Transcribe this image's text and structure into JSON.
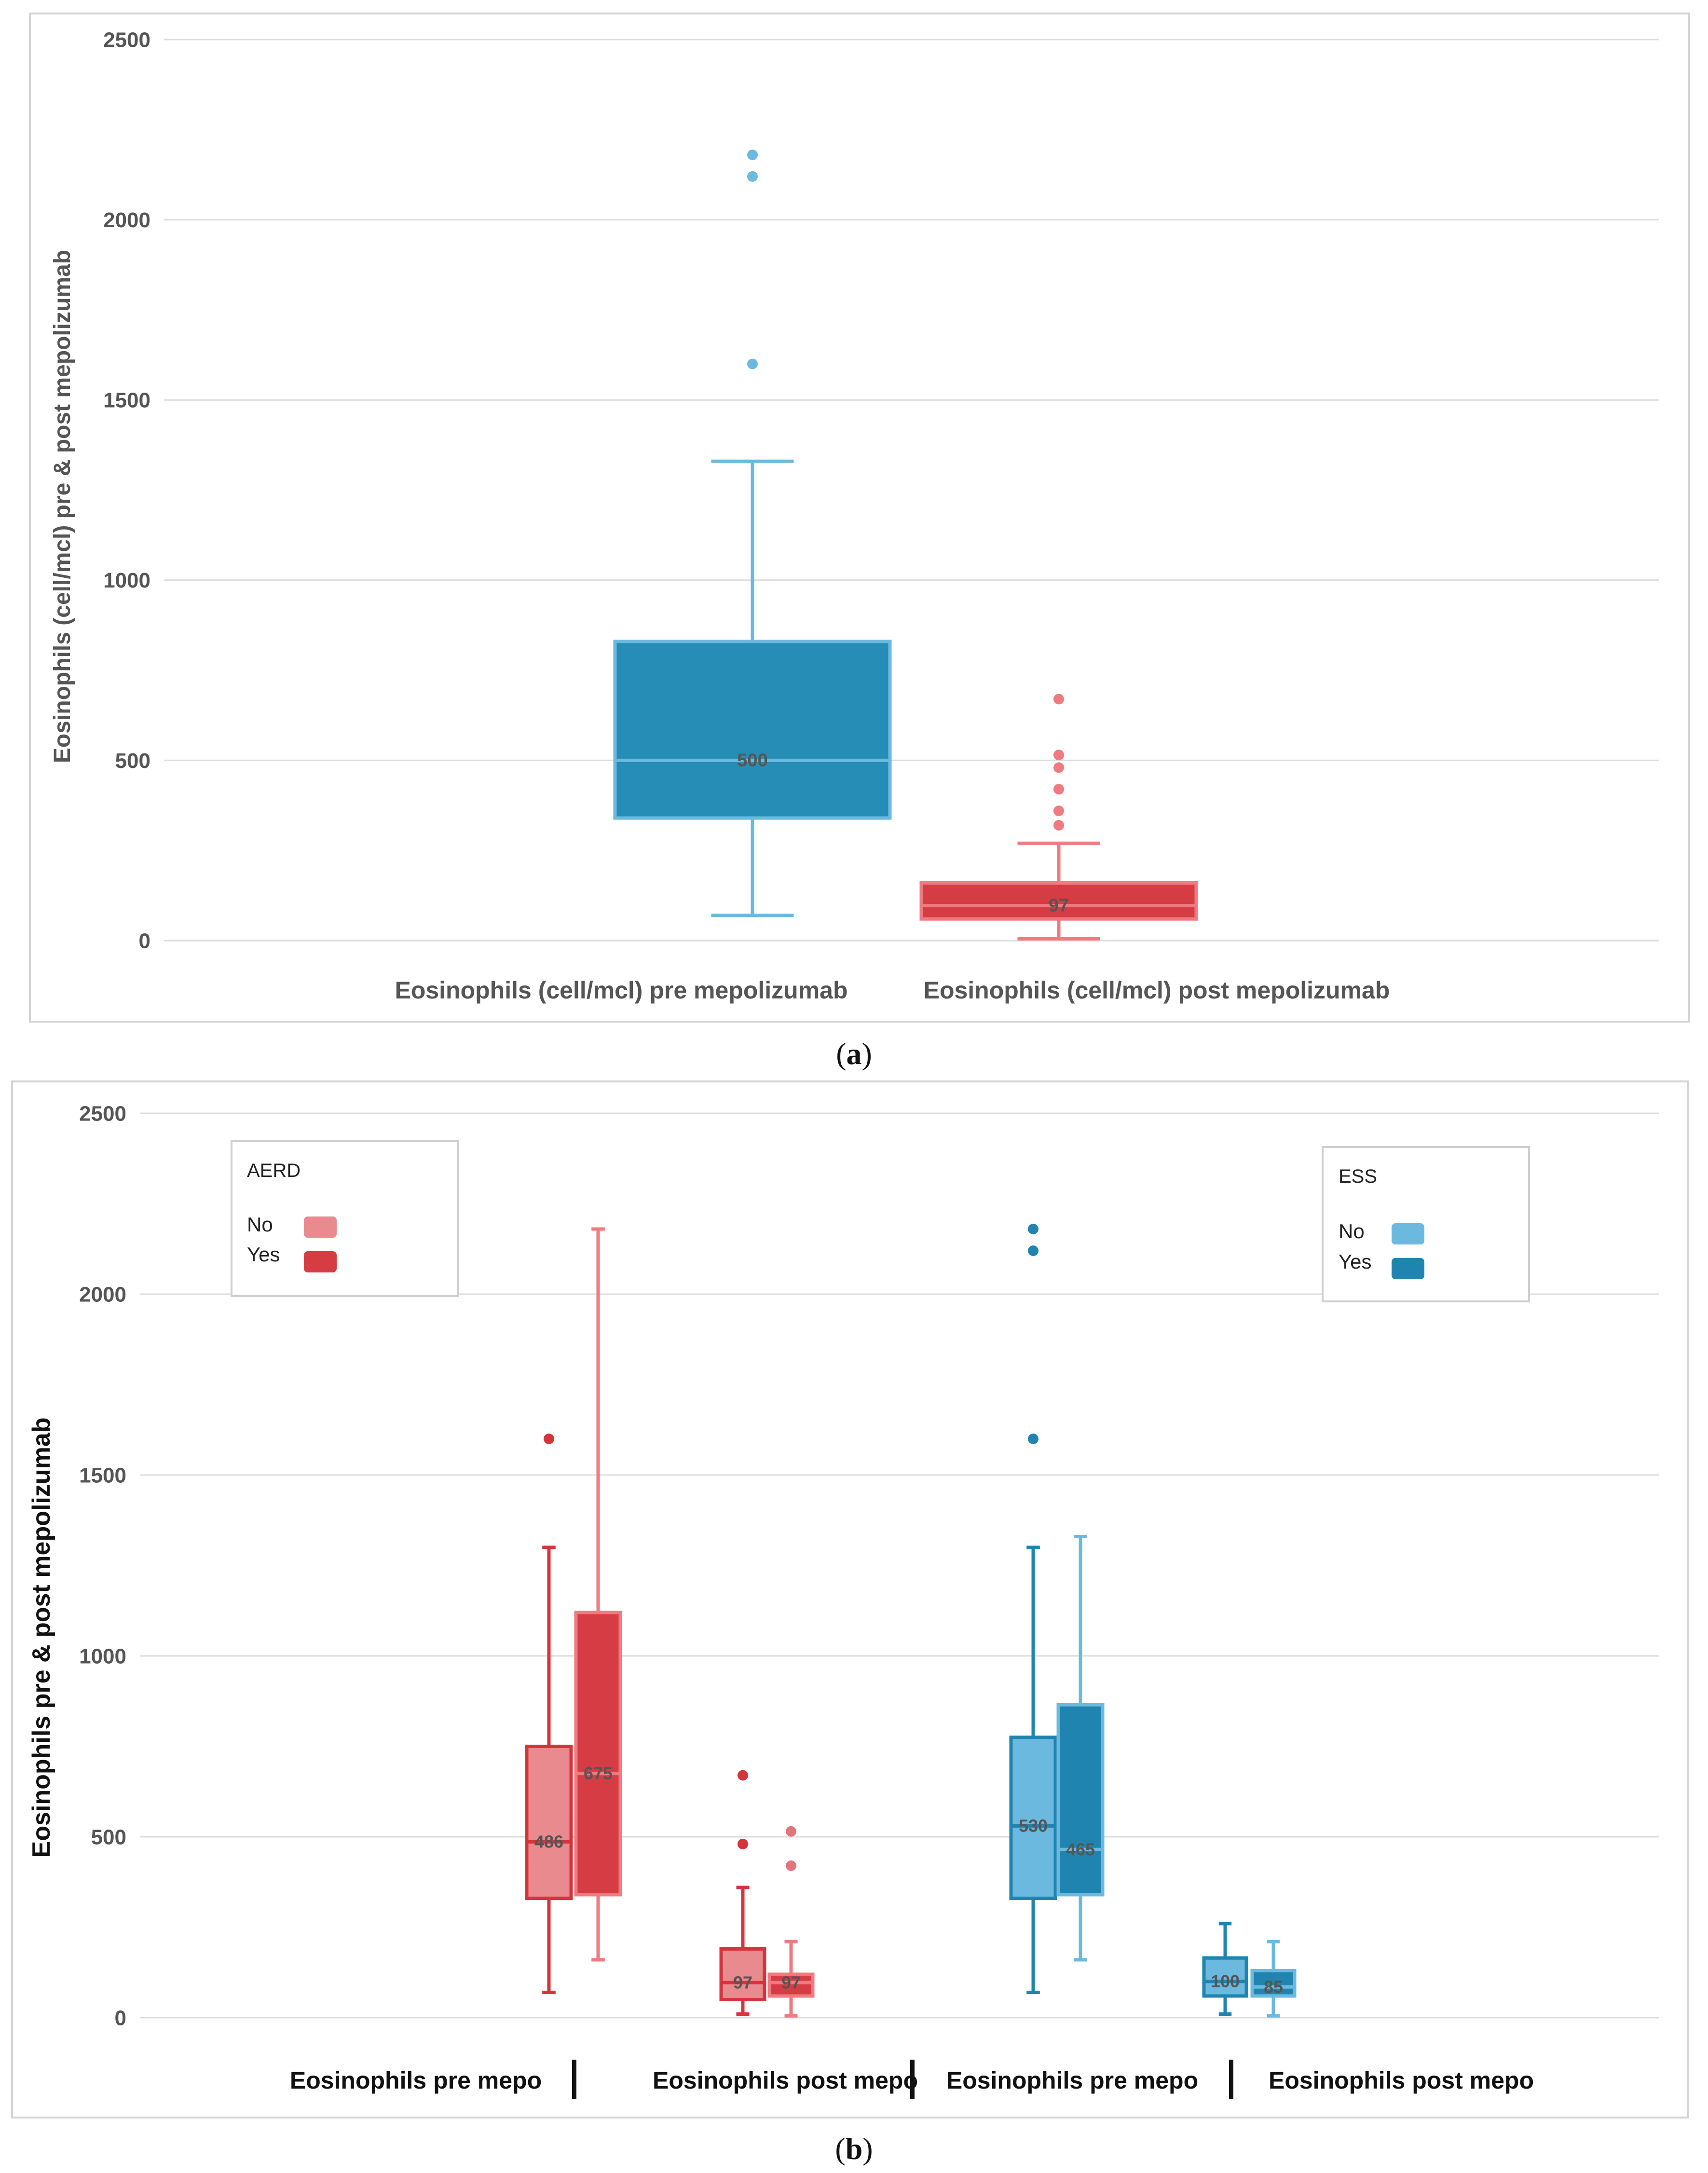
{
  "captions": {
    "a": {
      "open": "(",
      "letter": "a",
      "close": ")"
    },
    "b": {
      "open": "(",
      "letter": "b",
      "close": ")"
    }
  },
  "colors": {
    "grid": "#dcdcdc",
    "frame": "#d4d4d4",
    "text": "#555555",
    "blue_fill": "#258db6",
    "blue_edge": "#6bb9de",
    "red_fill": "#d63c44",
    "red_edge": "#ef7a7f",
    "red_light_fill": "#e88a8e",
    "red_light_edge": "#d6343c",
    "blue_light_fill": "#6cb9e0",
    "blue_light_edge": "#1f85b0"
  },
  "chart_data": [
    {
      "id": "a",
      "type": "box",
      "title": "",
      "xlabel": "",
      "ylabel": "Eosinophils (cell/mcl) pre & post mepolizumab",
      "ylim": [
        0,
        2500
      ],
      "yticks": [
        0,
        500,
        1000,
        1500,
        2000,
        2500
      ],
      "grid": true,
      "categories": [
        "Eosinophils (cell/mcl) pre mepolizumab",
        "Eosinophils (cell/mcl) post mepolizumab"
      ],
      "boxes": [
        {
          "category": "Eosinophils (cell/mcl) pre mepolizumab",
          "whisker_low": 70,
          "q1": 340,
          "median": 500,
          "q3": 830,
          "whisker_high": 1330,
          "outliers": [
            1600,
            2120,
            2180
          ],
          "label": "500",
          "fill": "#258db6",
          "edge": "#6bb9de"
        },
        {
          "category": "Eosinophils (cell/mcl) post mepolizumab",
          "whisker_low": 5,
          "q1": 60,
          "median": 97,
          "q3": 160,
          "whisker_high": 270,
          "outliers": [
            320,
            360,
            420,
            480,
            515,
            670
          ],
          "label": "97",
          "fill": "#d63c44",
          "edge": "#ef7a7f"
        }
      ]
    },
    {
      "id": "b",
      "type": "box",
      "title": "",
      "xlabel": "",
      "ylabel": "Eosinophils pre & post mepolizumab",
      "ylim": [
        0,
        2500
      ],
      "yticks": [
        0,
        500,
        1000,
        1500,
        2000,
        2500
      ],
      "grid": true,
      "categories": [
        "Eosinophils pre mepo",
        "Eosinophils post mepo",
        "Eosinophils pre mepo",
        "Eosinophils post mepo"
      ],
      "legends": [
        {
          "title": "AERD",
          "placement": "top-left",
          "entries": [
            {
              "name": "No",
              "color": "#e88a8e"
            },
            {
              "name": "Yes",
              "color": "#d63c44"
            }
          ]
        },
        {
          "title": "ESS",
          "placement": "top-right",
          "entries": [
            {
              "name": "No",
              "color": "#6cb9e0"
            },
            {
              "name": "Yes",
              "color": "#1f85b0"
            }
          ]
        }
      ],
      "series": [
        {
          "name": "AERD No",
          "category_index": 0,
          "whisker_low": 70,
          "q1": 330,
          "median": 486,
          "q3": 750,
          "whisker_high": 1300,
          "outliers": [
            1600
          ],
          "label": "486",
          "fill": "#e88a8e",
          "edge": "#d6343c"
        },
        {
          "name": "AERD Yes",
          "category_index": 0,
          "whisker_low": 160,
          "q1": 340,
          "median": 675,
          "q3": 1120,
          "whisker_high": 2180,
          "outliers": [],
          "label": "675",
          "fill": "#d63c44",
          "edge": "#ef7a7f"
        },
        {
          "name": "AERD No",
          "category_index": 1,
          "whisker_low": 10,
          "q1": 50,
          "median": 97,
          "q3": 190,
          "whisker_high": 360,
          "outliers": [
            480,
            670
          ],
          "label": "97",
          "fill": "#e88a8e",
          "edge": "#d6343c"
        },
        {
          "name": "AERD Yes",
          "category_index": 1,
          "whisker_low": 5,
          "q1": 60,
          "median": 97,
          "q3": 120,
          "whisker_high": 210,
          "outliers": [
            420,
            515
          ],
          "label": "97",
          "fill": "#d63c44",
          "edge": "#ef7a7f"
        },
        {
          "name": "ESS No",
          "category_index": 2,
          "whisker_low": 70,
          "q1": 330,
          "median": 530,
          "q3": 775,
          "whisker_high": 1300,
          "outliers": [
            1600,
            2120,
            2180
          ],
          "label": "530",
          "fill": "#6cb9e0",
          "edge": "#1f85b0"
        },
        {
          "name": "ESS Yes",
          "category_index": 2,
          "whisker_low": 160,
          "q1": 340,
          "median": 465,
          "q3": 865,
          "whisker_high": 1330,
          "outliers": [],
          "label": "465",
          "fill": "#1f85b0",
          "edge": "#6cb9e0"
        },
        {
          "name": "ESS No",
          "category_index": 3,
          "whisker_low": 10,
          "q1": 60,
          "median": 100,
          "q3": 165,
          "whisker_high": 260,
          "outliers": [],
          "label": "100",
          "fill": "#6cb9e0",
          "edge": "#1f85b0"
        },
        {
          "name": "ESS Yes",
          "category_index": 3,
          "whisker_low": 5,
          "q1": 60,
          "median": 85,
          "q3": 130,
          "whisker_high": 210,
          "outliers": [],
          "label": "85",
          "fill": "#1f85b0",
          "edge": "#6cb9e0"
        }
      ]
    }
  ]
}
